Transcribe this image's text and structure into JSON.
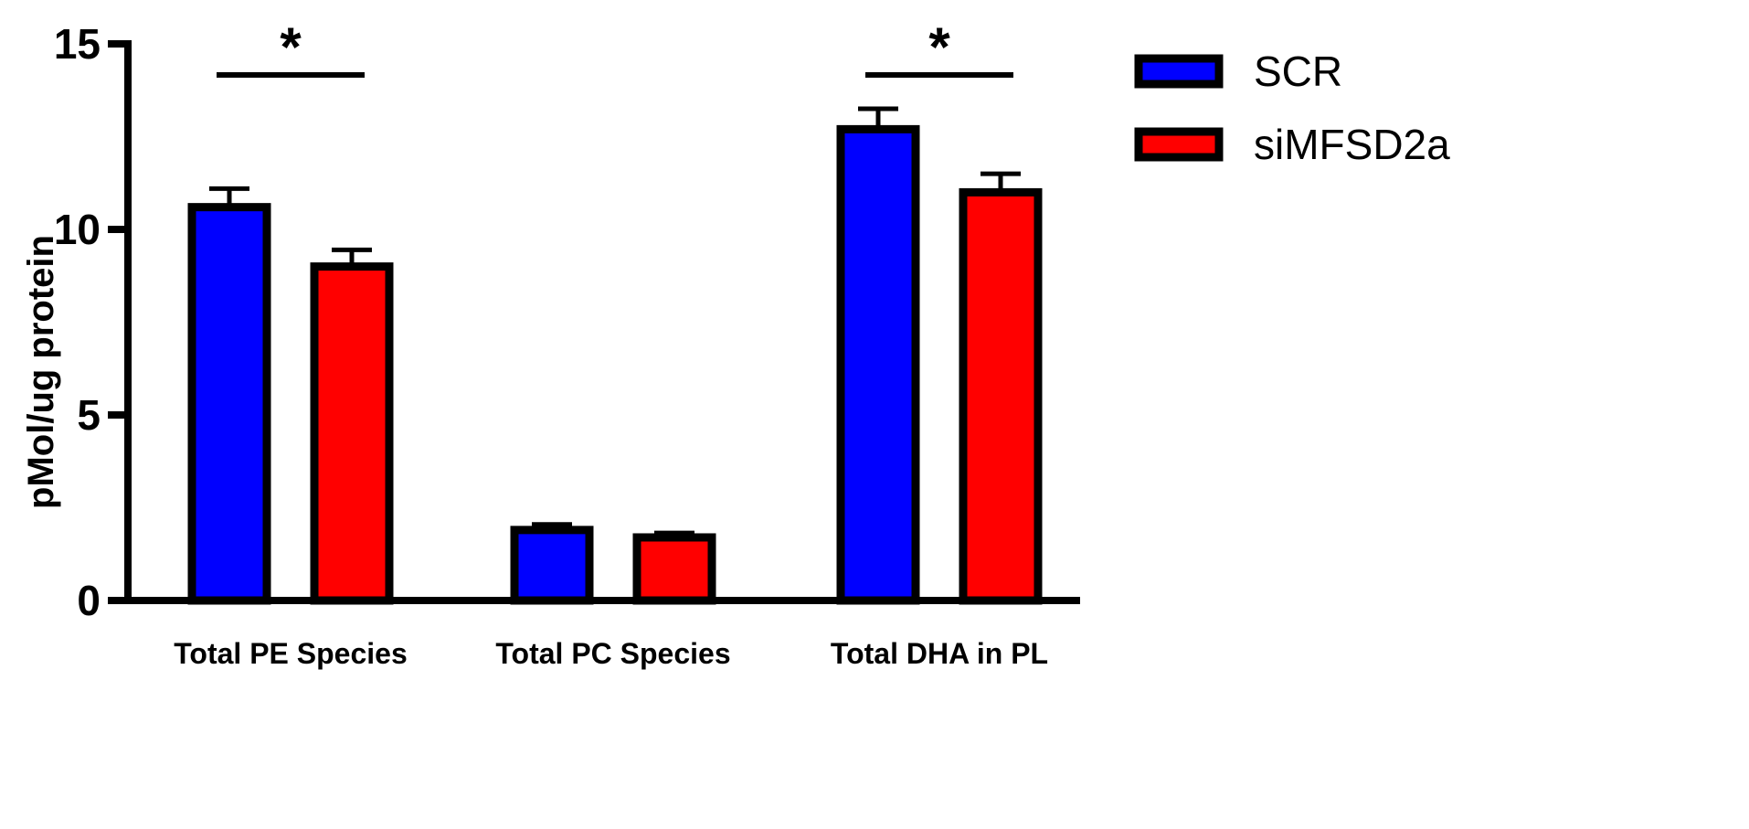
{
  "chart_data": {
    "type": "bar",
    "title": "",
    "xlabel": "",
    "ylabel": "pMol/ug protein",
    "ylim": [
      0,
      15
    ],
    "yticks": [
      "0",
      "5",
      "10",
      "15"
    ],
    "categories": [
      "Total PE Species",
      "Total PC Species",
      "Total DHA in PL"
    ],
    "series": [
      {
        "name": "SCR",
        "color": "#0000ff",
        "values": [
          10.6,
          1.9,
          12.7
        ],
        "errors": [
          0.5,
          0.15,
          0.55
        ]
      },
      {
        "name": "siMFSD2a",
        "color": "#ff0000",
        "values": [
          9.0,
          1.7,
          11.0
        ],
        "errors": [
          0.45,
          0.12,
          0.5
        ]
      }
    ],
    "significance": [
      {
        "category_index": 0,
        "label": "*"
      },
      {
        "category_index": 2,
        "label": "*"
      }
    ],
    "legend": {
      "position": "top-right",
      "entries": [
        "SCR",
        "siMFSD2a"
      ]
    },
    "grid": false
  }
}
